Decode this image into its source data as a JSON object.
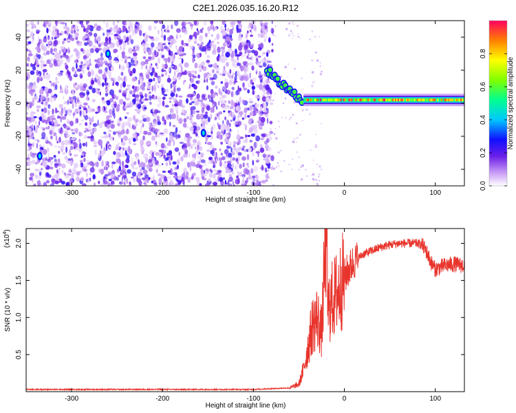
{
  "figure": {
    "title": "C2E1.2026.035.16.20.R12"
  },
  "chart_data": [
    {
      "type": "heatmap",
      "title": "C2E1.2026.035.16.20.R12",
      "xlabel": "Height of straight line (km)",
      "ylabel": "Frequency (Hz)",
      "xlim": [
        -350,
        132
      ],
      "ylim": [
        -50,
        50
      ],
      "x_ticks": [
        -300,
        -200,
        -100,
        0,
        100
      ],
      "y_ticks": [
        -40,
        -20,
        0,
        20,
        40
      ],
      "colorbar": {
        "label": "Normalized spectral amplitude",
        "range": [
          0,
          1
        ],
        "ticks": [
          "0.0",
          "0.2",
          "0.4",
          "0.6",
          "0.8"
        ]
      },
      "features": {
        "noise_region_km": [
          -350,
          -85
        ],
        "noise_amplitude_typical": 0.12,
        "descending_trace": [
          [
            -85,
            20
          ],
          [
            -75,
            15
          ],
          [
            -65,
            10
          ],
          [
            -55,
            5
          ],
          [
            -45,
            1
          ]
        ],
        "steady_band": {
          "x_range_km": [
            -45,
            132
          ],
          "frequency_hz": 2,
          "amplitude_range": [
            0.5,
            1.0
          ]
        },
        "bright_spots": [
          [
            -260,
            30
          ],
          [
            -155,
            -18
          ],
          [
            -335,
            -32
          ]
        ]
      }
    },
    {
      "type": "line",
      "xlabel": "Height of straight line (km)",
      "ylabel": "SNR (10 * v/v)",
      "y_multiplier": "(x10",
      "y_multiplier_exp": "4",
      "y_multiplier_close": ")",
      "xlim": [
        -350,
        132
      ],
      "ylim": [
        0,
        2.2
      ],
      "x_ticks": [
        -300,
        -200,
        -100,
        0,
        100
      ],
      "y_ticks": [
        "0.5",
        "1.0",
        "1.5",
        "2.0"
      ],
      "series": [
        {
          "name": "SNR",
          "color": "#e8342c",
          "x": [
            -350,
            -100,
            -60,
            -50,
            -45,
            -40,
            -35,
            -30,
            -25,
            -22,
            -20,
            -18,
            -15,
            -10,
            -5,
            0,
            5,
            10,
            20,
            30,
            40,
            50,
            60,
            70,
            80,
            85,
            90,
            95,
            100,
            110,
            120,
            132
          ],
          "y": [
            0.03,
            0.03,
            0.05,
            0.1,
            0.3,
            0.6,
            0.9,
            1.0,
            0.8,
            1.6,
            2.2,
            1.1,
            1.2,
            1.3,
            1.4,
            1.55,
            1.65,
            1.75,
            1.85,
            1.9,
            1.95,
            1.98,
            2.0,
            2.0,
            2.0,
            1.98,
            1.9,
            1.75,
            1.65,
            1.7,
            1.72,
            1.7
          ]
        }
      ]
    }
  ]
}
